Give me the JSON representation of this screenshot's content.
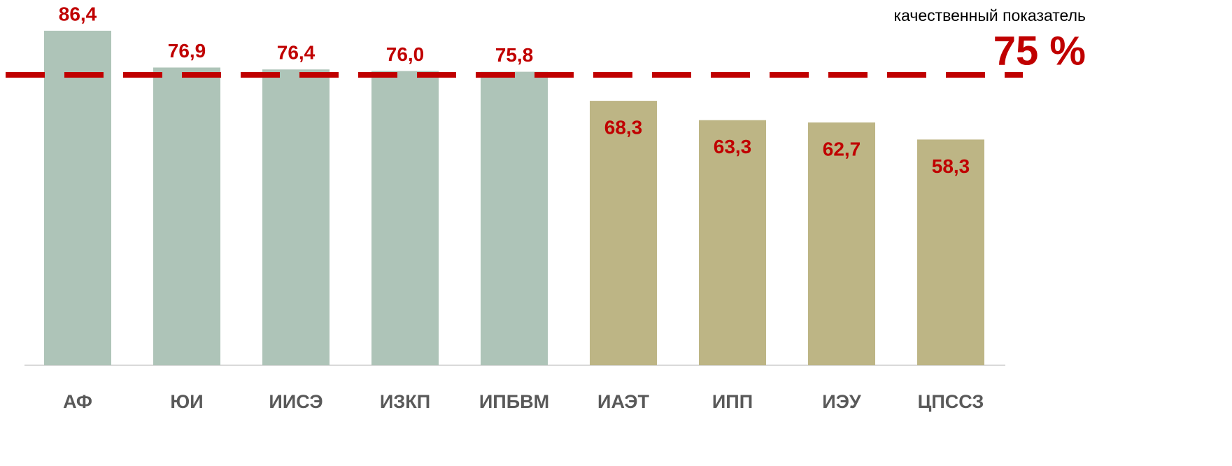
{
  "chart_data": {
    "type": "bar",
    "categories": [
      "АФ",
      "ЮИ",
      "ИИСЭ",
      "ИЗКП",
      "ИПБВМ",
      "ИАЭТ",
      "ИПП",
      "ИЭУ",
      "ЦПССЗ"
    ],
    "values": [
      86.4,
      76.9,
      76.4,
      76.0,
      75.8,
      68.3,
      63.3,
      62.7,
      58.3
    ],
    "value_labels": [
      "86,4",
      "76,9",
      "76,4",
      "76,0",
      "75,8",
      "68,3",
      "63,3",
      "62,7",
      "58,3"
    ],
    "colors": [
      "#aec4b8",
      "#aec4b8",
      "#aec4b8",
      "#aec4b8",
      "#aec4b8",
      "#bdb585",
      "#bdb585",
      "#bdb585",
      "#bdb585"
    ],
    "ylim": [
      0,
      90
    ],
    "threshold": 75,
    "threshold_label": "75 %",
    "threshold_color": "#c00000",
    "annotation": "качественный показатель",
    "label_color": "#c00000"
  }
}
